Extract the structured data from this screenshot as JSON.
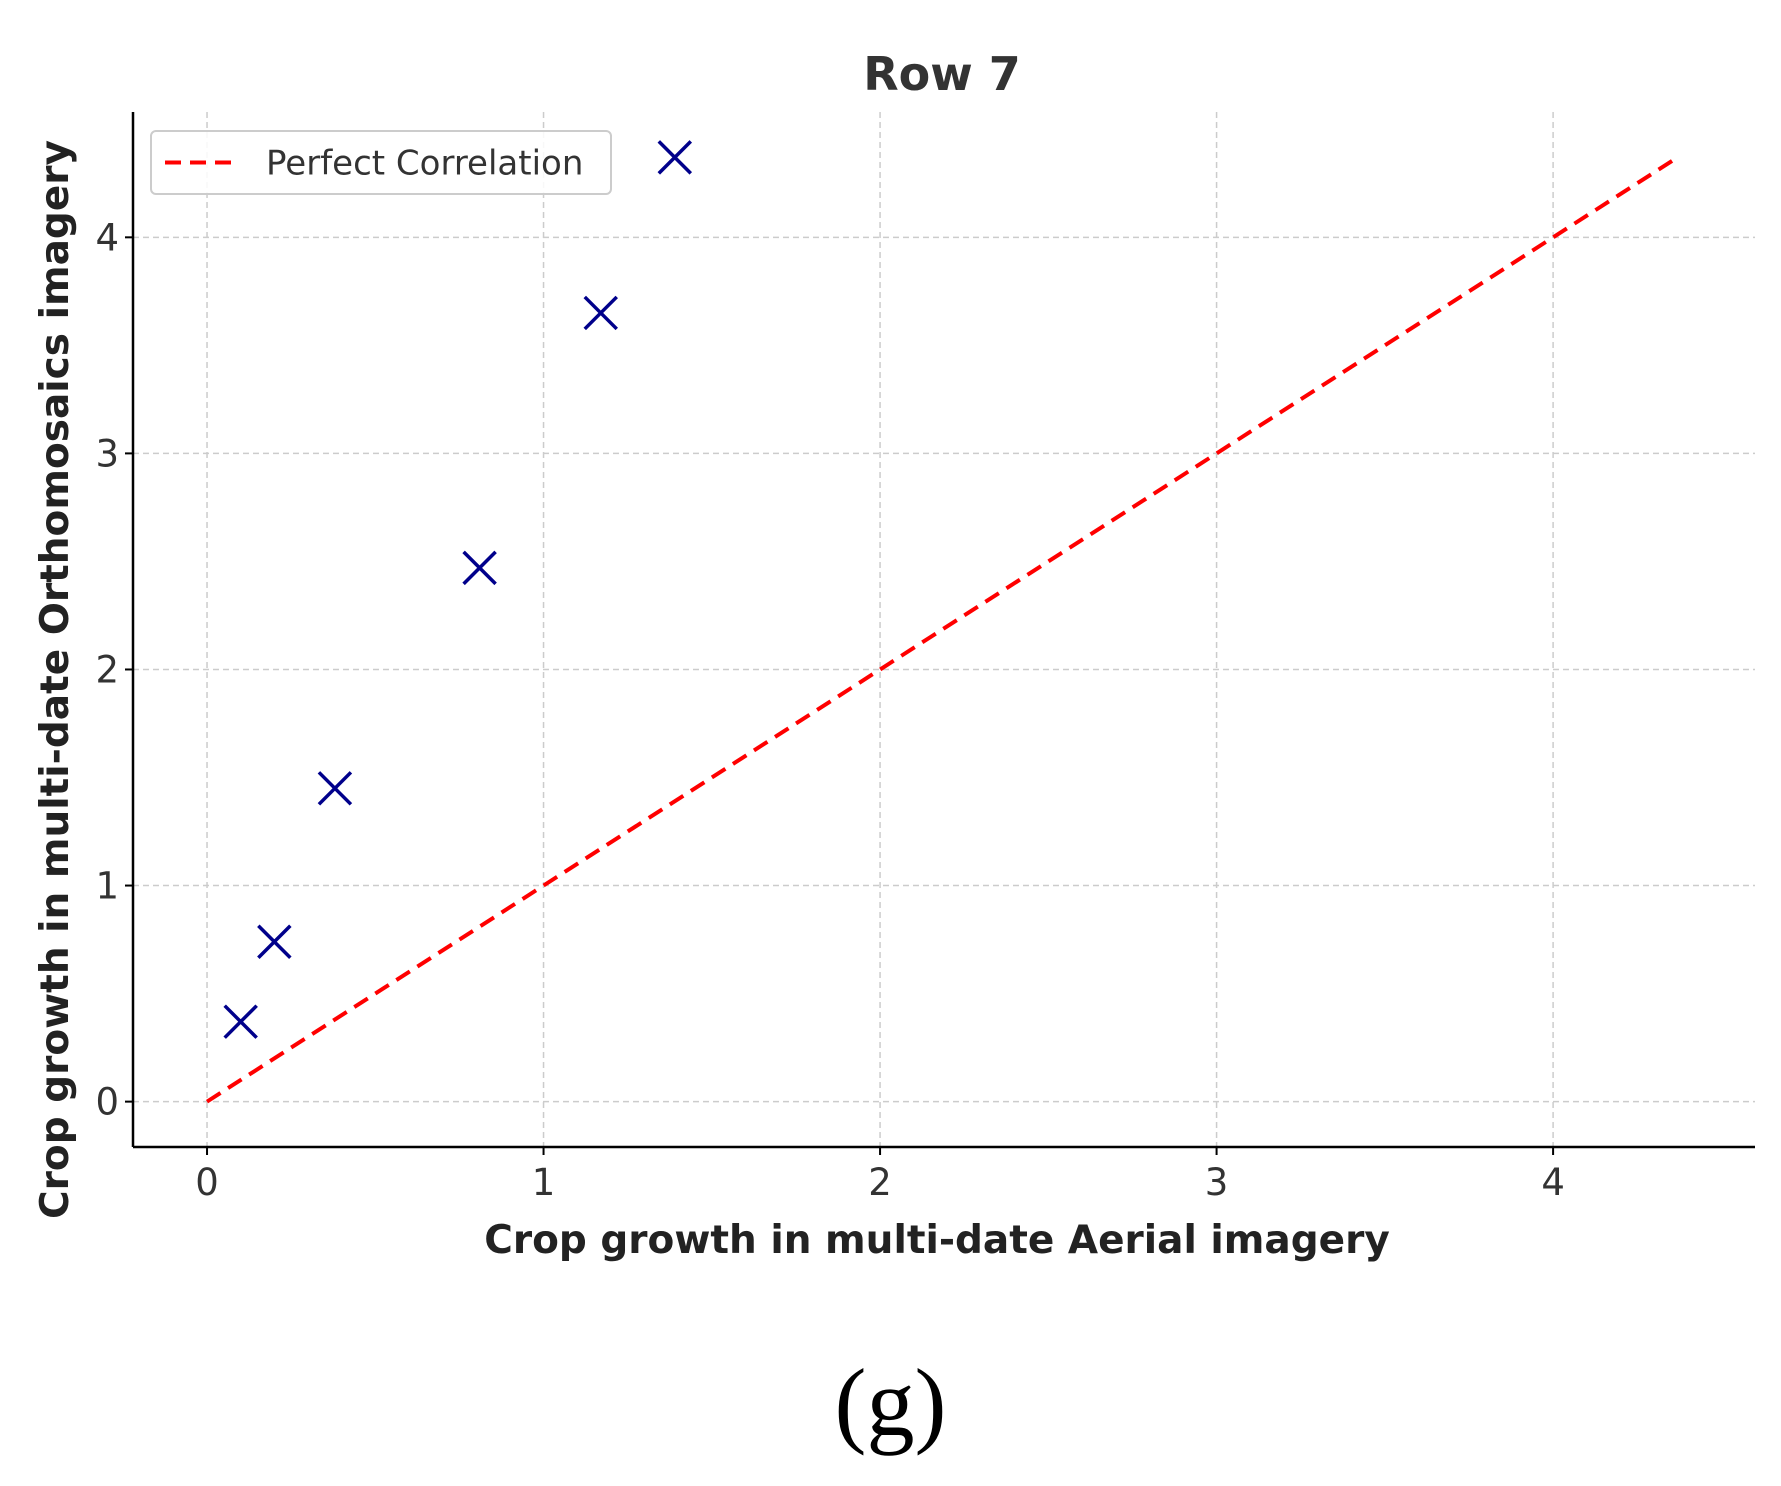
{
  "chart_data": {
    "type": "scatter",
    "title": "Row 7",
    "xlabel": "Crop growth in multi-date Aerial imagery",
    "ylabel": "Crop growth in multi-date Orthomosaics imagery",
    "xlim": [
      -0.22,
      4.6
    ],
    "ylim": [
      -0.21,
      4.58
    ],
    "xticks": [
      0,
      1,
      2,
      3,
      4
    ],
    "yticks": [
      0,
      1,
      2,
      3,
      4
    ],
    "grid": true,
    "legend": {
      "placement": "top-left",
      "entries": [
        {
          "label": "Perfect Correlation",
          "style": "dashed",
          "color": "#ff0000"
        }
      ]
    },
    "series": [
      {
        "kind": "scatter",
        "marker": "x",
        "color": "#00008b",
        "x": [
          0.1,
          0.2,
          0.38,
          0.81,
          1.17,
          1.39
        ],
        "y": [
          0.37,
          0.74,
          1.45,
          2.47,
          3.65,
          4.37
        ]
      },
      {
        "name": "Perfect Correlation",
        "kind": "line",
        "style": "dashed",
        "color": "#ff0000",
        "x": [
          0,
          4.37
        ],
        "y": [
          0,
          4.37
        ]
      }
    ]
  },
  "panel_label": "(g)"
}
